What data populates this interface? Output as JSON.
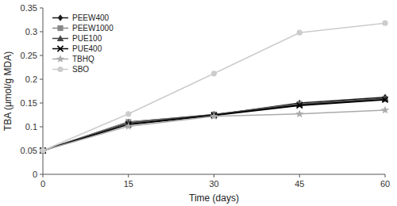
{
  "chart_data": {
    "type": "line",
    "x": [
      0,
      15,
      30,
      45,
      60
    ],
    "series": [
      {
        "name": "PEEW400",
        "color": "#1a1a1a",
        "marker": "diamond",
        "values": [
          0.05,
          0.11,
          0.125,
          0.15,
          0.162
        ]
      },
      {
        "name": "PEEW1000",
        "color": "#888888",
        "marker": "square",
        "values": [
          0.05,
          0.11,
          0.126,
          0.148,
          0.158
        ]
      },
      {
        "name": "PUE100",
        "color": "#444444",
        "marker": "triangle",
        "values": [
          0.05,
          0.108,
          0.126,
          0.147,
          0.16
        ]
      },
      {
        "name": "PUE400",
        "color": "#000000",
        "marker": "x",
        "values": [
          0.05,
          0.105,
          0.124,
          0.145,
          0.157
        ]
      },
      {
        "name": "TBHQ",
        "color": "#aaaaaa",
        "marker": "star",
        "values": [
          0.05,
          0.101,
          0.122,
          0.127,
          0.135
        ]
      },
      {
        "name": "SBO",
        "color": "#cccccc",
        "marker": "circle",
        "values": [
          0.05,
          0.127,
          0.212,
          0.298,
          0.318
        ]
      }
    ],
    "x_label": "Time (days)",
    "y_label": "TBA (μmol/g MDA)",
    "xlim": [
      0,
      60
    ],
    "xticks": [
      0,
      15,
      30,
      45,
      60
    ],
    "ylim": [
      0,
      0.35
    ],
    "yticks": [
      0,
      0.05,
      0.1,
      0.15,
      0.2,
      0.25,
      0.3,
      0.35
    ],
    "grid": false,
    "legend": "upper left"
  }
}
